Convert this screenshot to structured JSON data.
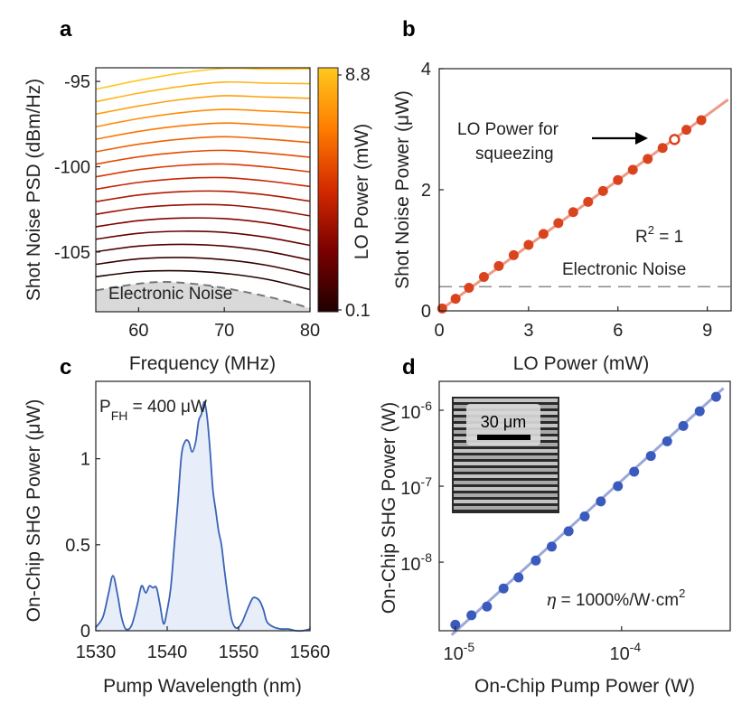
{
  "chart_data": [
    {
      "panel": "a",
      "type": "line",
      "xlabel": "Frequency (MHz)",
      "ylabel": "Shot Noise PSD (dBm/Hz)",
      "xlim": [
        55,
        80
      ],
      "ylim": [
        -108.5,
        -94.2
      ],
      "xticks": [
        "60",
        "70",
        "80"
      ],
      "yticks": [
        "-95",
        "-100",
        "-105"
      ],
      "annotation": "Electronic Noise",
      "colorbar": {
        "label": "LO Power (mW)",
        "min_label": "0.1",
        "max_label": "8.8",
        "colors": [
          "#200000",
          "#7a0000",
          "#d42a00",
          "#ff7d00",
          "#ffc81e"
        ]
      },
      "electronic_noise_curve": {
        "x": [
          55,
          58,
          61,
          63,
          65,
          68,
          71,
          74,
          77,
          80
        ],
        "y": [
          -107.25,
          -107.0,
          -106.8,
          -106.75,
          -106.8,
          -106.95,
          -107.2,
          -107.5,
          -107.85,
          -108.3
        ]
      },
      "series": [
        {
          "x": [
            55,
            60,
            65,
            70,
            75,
            80
          ],
          "y": [
            -106.45,
            -106.15,
            -106.1,
            -106.25,
            -106.6,
            -107.2
          ]
        },
        {
          "x": [
            55,
            60,
            65,
            70,
            75,
            80
          ],
          "y": [
            -105.72,
            -105.4,
            -105.32,
            -105.45,
            -105.78,
            -106.33
          ]
        },
        {
          "x": [
            55,
            60,
            65,
            70,
            75,
            80
          ],
          "y": [
            -104.98,
            -104.65,
            -104.55,
            -104.65,
            -104.96,
            -105.47
          ]
        },
        {
          "x": [
            55,
            60,
            65,
            70,
            75,
            80
          ],
          "y": [
            -104.25,
            -103.9,
            -103.78,
            -103.85,
            -104.14,
            -104.61
          ]
        },
        {
          "x": [
            55,
            60,
            65,
            70,
            75,
            80
          ],
          "y": [
            -103.52,
            -103.16,
            -103.01,
            -103.04,
            -103.3,
            -103.74
          ]
        },
        {
          "x": [
            55,
            60,
            65,
            70,
            75,
            80
          ],
          "y": [
            -102.79,
            -102.41,
            -102.24,
            -102.24,
            -102.48,
            -102.88
          ]
        },
        {
          "x": [
            55,
            60,
            65,
            70,
            75,
            80
          ],
          "y": [
            -102.05,
            -101.66,
            -101.46,
            -101.44,
            -101.66,
            -102.02
          ]
        },
        {
          "x": [
            55,
            60,
            65,
            70,
            75,
            80
          ],
          "y": [
            -101.32,
            -100.92,
            -100.69,
            -100.64,
            -100.84,
            -101.16
          ]
        },
        {
          "x": [
            55,
            60,
            65,
            70,
            75,
            80
          ],
          "y": [
            -100.59,
            -100.17,
            -99.92,
            -99.84,
            -100.02,
            -100.3
          ]
        },
        {
          "x": [
            55,
            60,
            65,
            70,
            75,
            80
          ],
          "y": [
            -99.85,
            -99.42,
            -99.15,
            -99.04,
            -99.2,
            -99.44
          ]
        },
        {
          "x": [
            55,
            60,
            65,
            70,
            75,
            80
          ],
          "y": [
            -99.12,
            -98.68,
            -98.38,
            -98.24,
            -98.38,
            -98.58
          ]
        },
        {
          "x": [
            55,
            60,
            65,
            70,
            75,
            80
          ],
          "y": [
            -98.39,
            -97.93,
            -97.6,
            -97.44,
            -97.56,
            -97.71
          ]
        },
        {
          "x": [
            55,
            60,
            65,
            70,
            75,
            80
          ],
          "y": [
            -97.66,
            -97.18,
            -96.83,
            -96.64,
            -96.74,
            -96.85
          ]
        },
        {
          "x": [
            55,
            60,
            65,
            70,
            75,
            80
          ],
          "y": [
            -96.92,
            -96.44,
            -96.06,
            -95.84,
            -95.92,
            -95.99
          ]
        },
        {
          "x": [
            55,
            60,
            65,
            70,
            75,
            80
          ],
          "y": [
            -96.19,
            -95.69,
            -95.29,
            -95.04,
            -95.1,
            -95.13
          ]
        },
        {
          "x": [
            55,
            60,
            65,
            70,
            75,
            80
          ],
          "y": [
            -95.46,
            -94.94,
            -94.51,
            -94.24,
            -94.28,
            -94.27
          ]
        }
      ]
    },
    {
      "panel": "b",
      "type": "scatter",
      "xlabel": "LO Power (mW)",
      "ylabel": "Shot Noise Power (μW)",
      "xlim": [
        0,
        9.8
      ],
      "ylim": [
        0,
        4
      ],
      "xticks": [
        "0",
        "3",
        "6",
        "9"
      ],
      "yticks": [
        "0",
        "2",
        "4"
      ],
      "x": [
        0.1,
        0.55,
        1.0,
        1.5,
        2.0,
        2.5,
        3.0,
        3.5,
        4.0,
        4.5,
        5.0,
        5.5,
        6.0,
        6.5,
        7.0,
        7.5,
        8.3,
        8.8
      ],
      "y": [
        0.04,
        0.2,
        0.38,
        0.56,
        0.74,
        0.92,
        1.09,
        1.27,
        1.45,
        1.63,
        1.8,
        1.98,
        2.16,
        2.33,
        2.51,
        2.69,
        2.99,
        3.15
      ],
      "open_point": {
        "x": 7.9,
        "y": 2.83
      },
      "fit_line": {
        "x": [
          0,
          9.7
        ],
        "y": [
          0,
          3.49
        ]
      },
      "electronic_noise_level": 0.4,
      "annotations": {
        "r2_prefix": "R",
        "r2_exp": "2",
        "r2_value": " = 1",
        "noise_label": "Electronic Noise",
        "lo_line1": "LO Power for",
        "lo_line2": "squeezing"
      }
    },
    {
      "panel": "c",
      "type": "area",
      "xlabel": "Pump Wavelength (nm)",
      "ylabel": "On-Chip SHG Power (μW)",
      "xlim": [
        1530,
        1560
      ],
      "ylim": [
        0,
        1.45
      ],
      "xticks": [
        "1530",
        "1540",
        "1550",
        "1560"
      ],
      "yticks": [
        "0",
        "0.5",
        "1"
      ],
      "annotation": {
        "prefix": "P",
        "sub": "FH",
        "value": " = 400 μW"
      },
      "x": [
        1530,
        1531,
        1531.8,
        1532.4,
        1533,
        1533.6,
        1534.2,
        1535,
        1535.8,
        1536.4,
        1537,
        1537.5,
        1538,
        1538.5,
        1539,
        1539.5,
        1540,
        1540.5,
        1541,
        1541.5,
        1542,
        1542.5,
        1543,
        1543.5,
        1544,
        1544.4,
        1544.8,
        1545.2,
        1545.6,
        1546,
        1546.4,
        1546.8,
        1547.2,
        1547.6,
        1548,
        1548.5,
        1549,
        1549.5,
        1550,
        1550.5,
        1551,
        1551.5,
        1552,
        1552.5,
        1553,
        1553.5,
        1554,
        1555,
        1556,
        1557,
        1558,
        1559,
        1560
      ],
      "y": [
        0.02,
        0.08,
        0.22,
        0.32,
        0.22,
        0.08,
        0.01,
        0.03,
        0.15,
        0.26,
        0.22,
        0.26,
        0.25,
        0.25,
        0.15,
        0.04,
        0.12,
        0.25,
        0.5,
        0.75,
        1.02,
        1.1,
        1.1,
        1.04,
        1.1,
        1.22,
        1.26,
        1.33,
        1.24,
        1.05,
        0.82,
        0.7,
        0.58,
        0.5,
        0.36,
        0.2,
        0.07,
        0.02,
        0.02,
        0.05,
        0.1,
        0.15,
        0.19,
        0.19,
        0.17,
        0.12,
        0.05,
        0.02,
        0.01,
        0.01,
        0.0,
        0.0,
        0.01
      ]
    },
    {
      "panel": "d",
      "type": "scatter",
      "scale": "log-log",
      "xlabel": "On-Chip Pump Power (W)",
      "ylabel": "On-Chip SHG Power (W)",
      "xlim": [
        8e-06,
        0.00045
      ],
      "ylim": [
        1.25e-09,
        2.4e-06
      ],
      "xtick_values": [
        1e-05,
        0.0001
      ],
      "xtick_labels": [
        {
          "base": "10",
          "exp": "-5"
        },
        {
          "base": "10",
          "exp": "-4"
        }
      ],
      "ytick_values": [
        1e-08,
        1e-07,
        1e-06
      ],
      "ytick_labels": [
        {
          "base": "10",
          "exp": "-8"
        },
        {
          "base": "10",
          "exp": "-7"
        },
        {
          "base": "10",
          "exp": "-6"
        }
      ],
      "x": [
        1e-05,
        1.25e-05,
        1.55e-05,
        1.95e-05,
        2.4e-05,
        3.05e-05,
        3.8e-05,
        4.8e-05,
        6e-05,
        7.5e-05,
        9.5e-05,
        0.000119,
        0.00015,
        0.000188,
        0.000235,
        0.000295,
        0.00037
      ],
      "y": [
        1.5e-09,
        2e-09,
        2.6e-09,
        4.5e-09,
        6.3e-09,
        1.05e-08,
        1.6e-08,
        2.55e-08,
        4e-08,
        6.3e-08,
        1e-07,
        1.55e-07,
        2.5e-07,
        3.9e-07,
        6.2e-07,
        9.7e-07,
        1.5e-06
      ],
      "fit_line": {
        "x": [
          9.5e-06,
          0.00041
        ],
        "y": [
          1.1e-09,
          1.95e-06
        ]
      },
      "annotation": {
        "eta": "η",
        "text": " = 1000%/W·cm",
        "exp": "2"
      },
      "inset": {
        "scale_label": "30 μm"
      }
    }
  ],
  "panels": {
    "a": "a",
    "b": "b",
    "c": "c",
    "d": "d"
  }
}
